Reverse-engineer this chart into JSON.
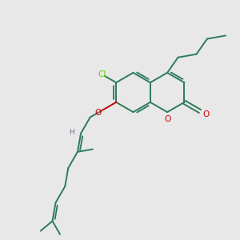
{
  "bg": "#e8e8e8",
  "bc": "#2d7a5c",
  "oc": "#cc0000",
  "clc": "#66cc00",
  "hc": "#667788",
  "lw": 1.4,
  "fs": 7.5,
  "figsize": [
    3.0,
    3.0
  ],
  "dpi": 100,
  "xlim": [
    0,
    10
  ],
  "ylim": [
    0,
    10
  ],
  "r3": 0.82
}
